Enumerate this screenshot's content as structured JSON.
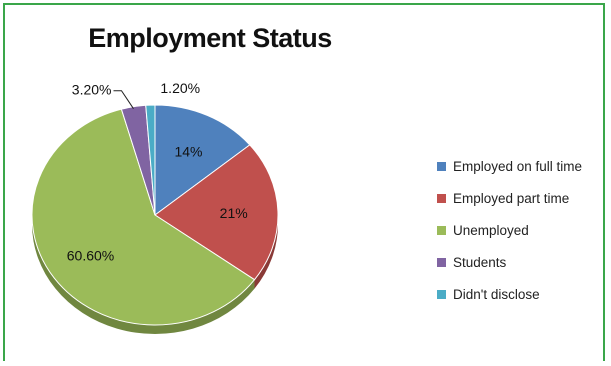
{
  "chart_data": {
    "type": "pie",
    "title": "Employment Status",
    "slices": [
      {
        "label": "Employed on full time",
        "value": 14,
        "display": "14%",
        "color": "#4f81bd"
      },
      {
        "label": "Employed part time",
        "value": 21,
        "display": "21%",
        "color": "#c0504d"
      },
      {
        "label": "Unemployed",
        "value": 60.6,
        "display": "60.60%",
        "color": "#9bbb59"
      },
      {
        "label": "Students",
        "value": 3.2,
        "display": "3.20%",
        "color": "#8064a2"
      },
      {
        "label": "Didn't disclose",
        "value": 1.2,
        "display": "1.20%",
        "color": "#4bacc6"
      }
    ],
    "legend_position": "right",
    "style": "3d-tilted"
  }
}
